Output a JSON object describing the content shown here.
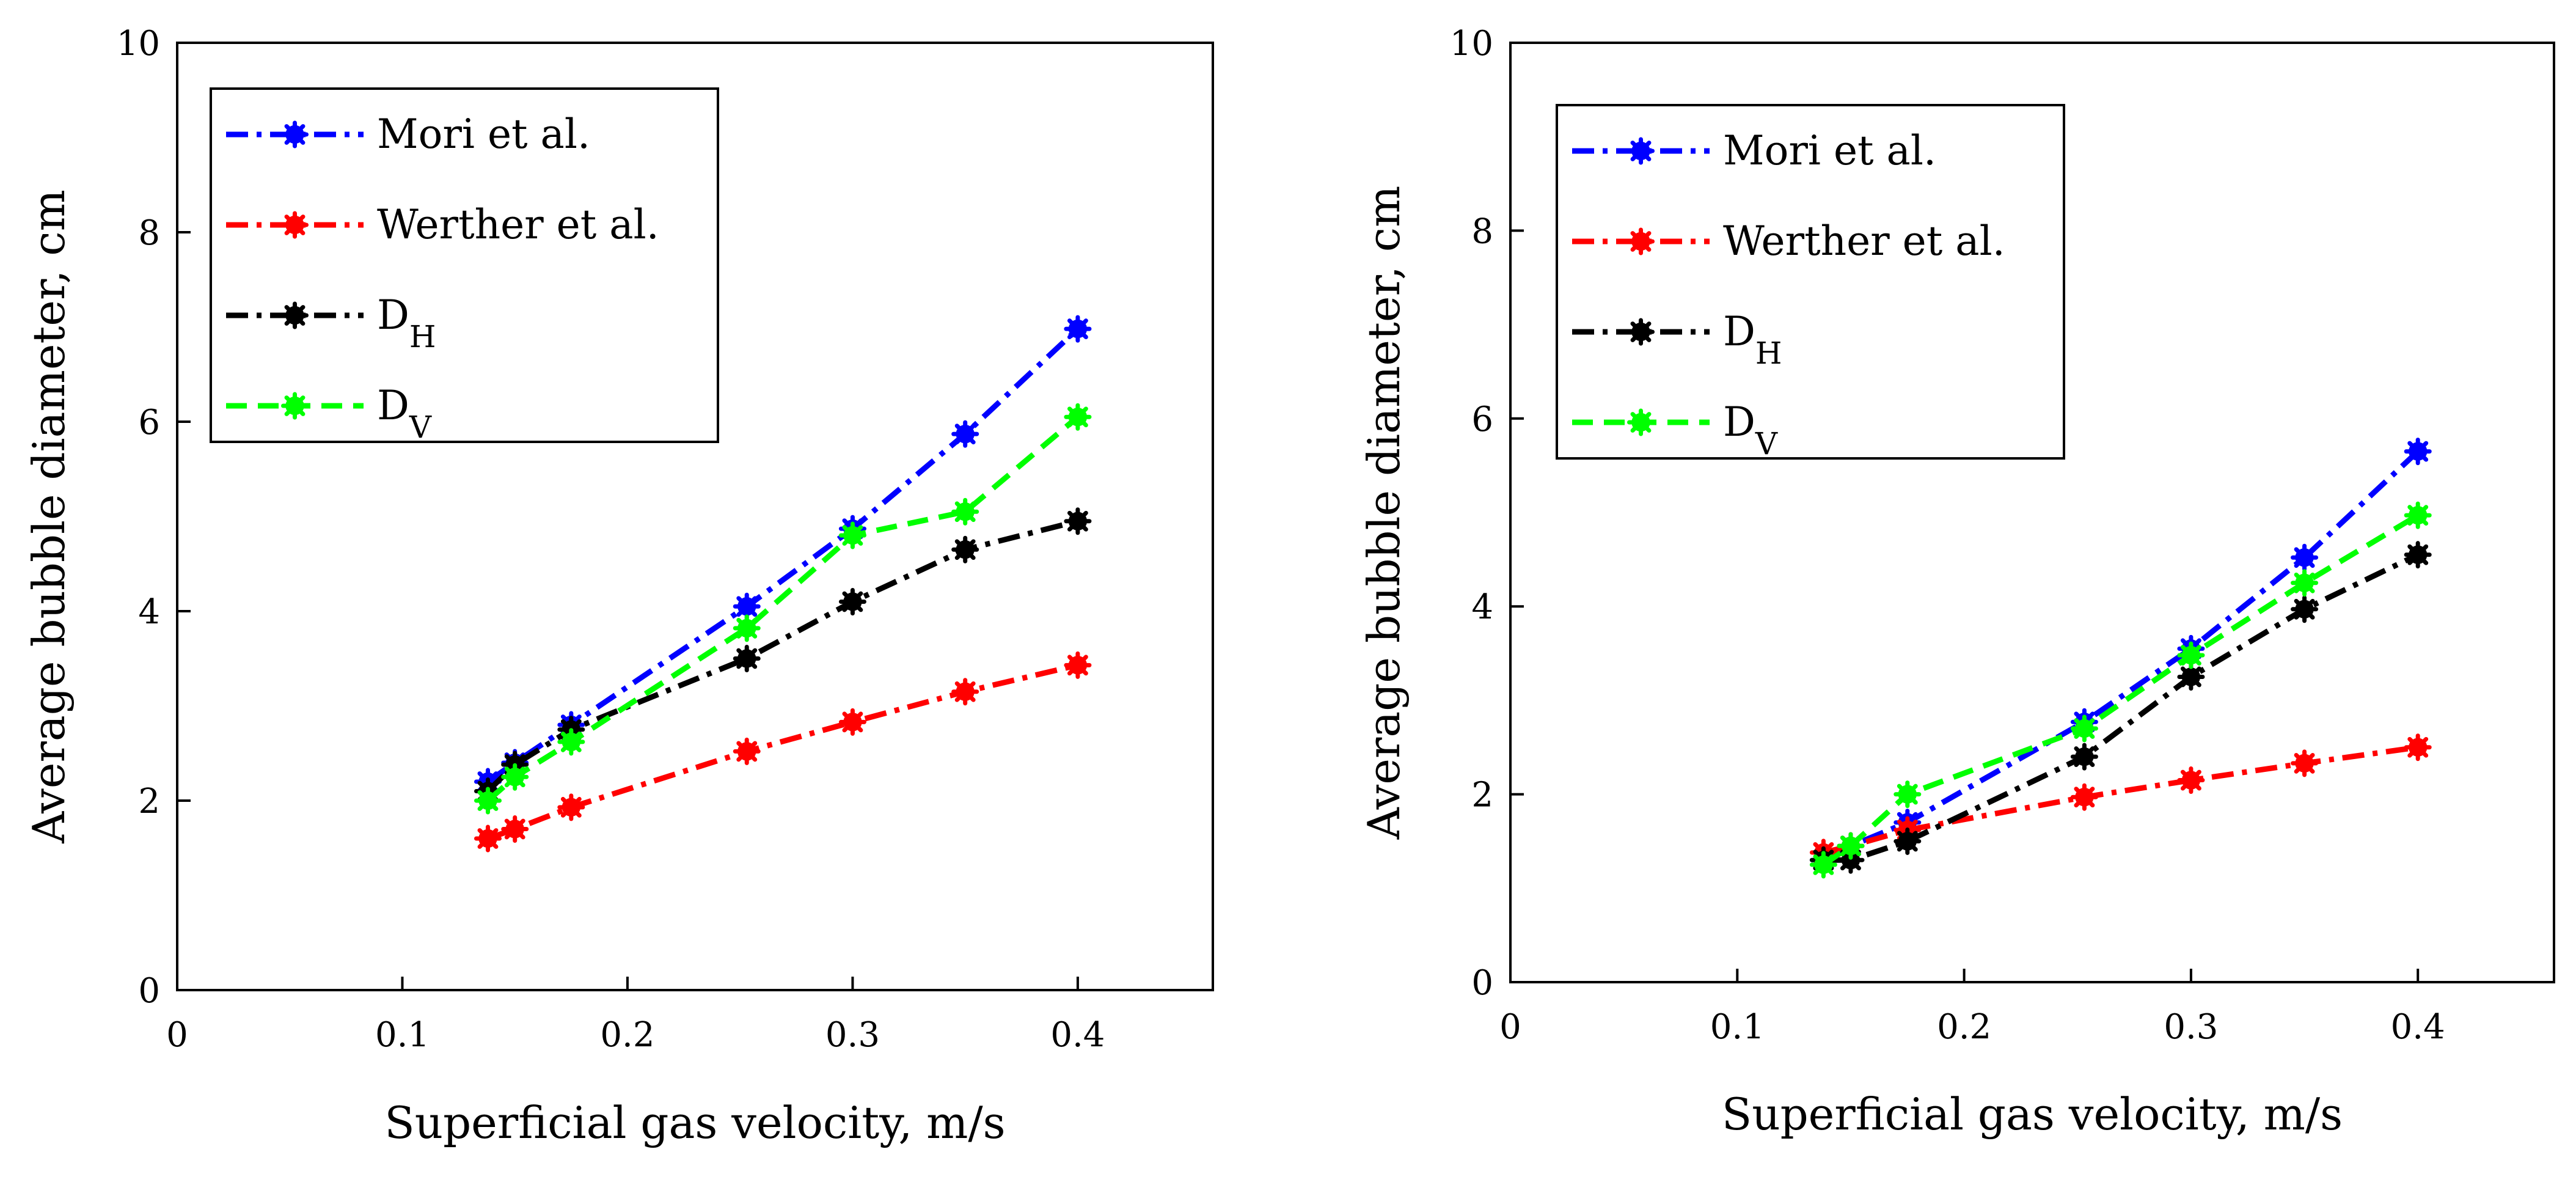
{
  "chart_data": [
    {
      "type": "line",
      "xlabel": "Superficial gas velocity, m/s",
      "ylabel": "Average bubble diameter, cm",
      "xlim": [
        0,
        0.46
      ],
      "ylim": [
        0,
        10
      ],
      "xticks": [
        0,
        0.1,
        0.2,
        0.3,
        0.4
      ],
      "yticks": [
        0,
        2,
        4,
        6,
        8,
        10
      ],
      "xtick_labels": [
        "0",
        "0.1",
        "0.2",
        "0.3",
        "0.4"
      ],
      "ytick_labels": [
        "0",
        "2",
        "4",
        "6",
        "8",
        "10"
      ],
      "grid": false,
      "legend_position": "top-left",
      "x": [
        0.138,
        0.15,
        0.175,
        0.253,
        0.3,
        0.35,
        0.4
      ],
      "series": [
        {
          "name": "Mori et al.",
          "sub": "",
          "color": "#0000ff",
          "dash": "dashdot",
          "values": [
            2.2,
            2.4,
            2.8,
            4.05,
            4.87,
            5.87,
            6.98
          ]
        },
        {
          "name": "Werther et al.",
          "sub": "",
          "color": "#ff0000",
          "dash": "dashdot",
          "values": [
            1.6,
            1.7,
            1.93,
            2.52,
            2.83,
            3.15,
            3.43
          ]
        },
        {
          "name": "D",
          "sub": "H",
          "color": "#000000",
          "dash": "dashdot",
          "values": [
            2.1,
            2.38,
            2.75,
            3.5,
            4.1,
            4.65,
            4.95
          ]
        },
        {
          "name": "D",
          "sub": "V",
          "color": "#00ff00",
          "dash": "dashed",
          "values": [
            2.0,
            2.25,
            2.62,
            3.82,
            4.8,
            5.05,
            6.05
          ]
        }
      ]
    },
    {
      "type": "line",
      "xlabel": "Superficial gas velocity, m/s",
      "ylabel": "Average bubble diameter, cm",
      "xlim": [
        0,
        0.46
      ],
      "ylim": [
        0,
        10
      ],
      "xticks": [
        0,
        0.1,
        0.2,
        0.3,
        0.4
      ],
      "yticks": [
        0,
        2,
        4,
        6,
        8,
        10
      ],
      "xtick_labels": [
        "0",
        "0.1",
        "0.2",
        "0.3",
        "0.4"
      ],
      "ytick_labels": [
        "0",
        "2",
        "4",
        "6",
        "8",
        "10"
      ],
      "grid": false,
      "legend_position": "top-left",
      "x": [
        0.138,
        0.15,
        0.175,
        0.253,
        0.3,
        0.35,
        0.4
      ],
      "series": [
        {
          "name": "Mori et al.",
          "sub": "",
          "color": "#0000ff",
          "dash": "dashdot",
          "values": [
            1.3,
            1.45,
            1.7,
            2.77,
            3.55,
            4.52,
            5.65
          ]
        },
        {
          "name": "Werther et al.",
          "sub": "",
          "color": "#ff0000",
          "dash": "dashdot",
          "values": [
            1.38,
            1.45,
            1.62,
            1.97,
            2.15,
            2.33,
            2.5
          ]
        },
        {
          "name": "D",
          "sub": "H",
          "color": "#000000",
          "dash": "dashdot",
          "values": [
            1.3,
            1.3,
            1.5,
            2.4,
            3.25,
            3.97,
            4.55
          ]
        },
        {
          "name": "D",
          "sub": "V",
          "color": "#00ff00",
          "dash": "dashed",
          "values": [
            1.25,
            1.45,
            2.0,
            2.7,
            3.48,
            4.25,
            4.97
          ]
        }
      ]
    }
  ]
}
